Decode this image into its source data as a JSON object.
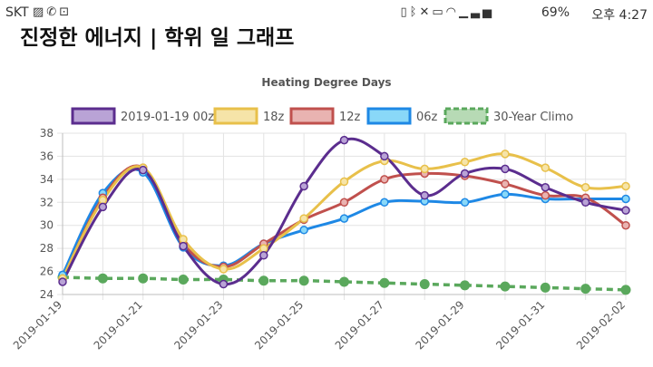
{
  "status_bar": {
    "carrier": "SKT",
    "left_icons": [
      "image-icon",
      "phone-icon",
      "bag-icon"
    ],
    "right_icons": [
      "vibrate-icon",
      "bluetooth-icon",
      "mute-icon",
      "hd-voice-icon",
      "wifi-icon",
      "signal-icon"
    ],
    "battery": "69%",
    "time": "오후 4:27"
  },
  "page_title": "진정한 에너지 | 학위 일 그래프",
  "chart_data": {
    "type": "line",
    "title": "Heating Degree Days",
    "xlabel": "",
    "ylabel": "",
    "x": [
      "2019-01-19",
      "2019-01-20",
      "2019-01-21",
      "2019-01-22",
      "2019-01-23",
      "2019-01-24",
      "2019-01-25",
      "2019-01-26",
      "2019-01-27",
      "2019-01-28",
      "2019-01-29",
      "2019-01-30",
      "2019-01-31",
      "2019-02-01",
      "2019-02-02"
    ],
    "x_tick_labels": [
      "2019-01-19",
      "2019-01-21",
      "2019-01-23",
      "2019-01-25",
      "2019-01-27",
      "2019-01-29",
      "2019-01-31",
      "2019-02-02"
    ],
    "ylim": [
      24,
      38
    ],
    "y_ticks": [
      24,
      26,
      28,
      30,
      32,
      34,
      36,
      38
    ],
    "grid": true,
    "legend_position": "top",
    "series": [
      {
        "name": "2019-01-19 00z",
        "color": "#5b2d8e",
        "fill": "#b9a3d6",
        "dashed": false,
        "values": [
          25.1,
          31.6,
          34.8,
          28.2,
          24.9,
          27.4,
          33.4,
          37.4,
          36.0,
          32.6,
          34.5,
          34.9,
          33.3,
          32.0,
          31.3
        ]
      },
      {
        "name": "18z",
        "color": "#e8c04a",
        "fill": "#f6e4a8",
        "dashed": false,
        "values": [
          25.4,
          32.2,
          35.0,
          28.8,
          26.2,
          28.0,
          30.6,
          33.8,
          35.6,
          34.9,
          35.5,
          36.2,
          35.0,
          33.3,
          33.4
        ]
      },
      {
        "name": "12z",
        "color": "#c0504d",
        "fill": "#e9b3b1",
        "dashed": false,
        "values": [
          25.3,
          32.4,
          35.0,
          28.4,
          26.4,
          28.4,
          30.5,
          32.0,
          34.0,
          34.5,
          34.3,
          33.6,
          32.6,
          32.4,
          30.0
        ]
      },
      {
        "name": "06z",
        "color": "#1e88e5",
        "fill": "#89d8f8",
        "dashed": false,
        "values": [
          25.7,
          32.8,
          34.6,
          28.1,
          26.5,
          28.4,
          29.6,
          30.6,
          32.0,
          32.1,
          32.0,
          32.7,
          32.3,
          32.3,
          32.3
        ]
      },
      {
        "name": "30-Year Climo",
        "color": "#5aa85c",
        "fill": "#b7dab5",
        "dashed": true,
        "values": [
          25.5,
          25.4,
          25.4,
          25.3,
          25.3,
          25.2,
          25.2,
          25.1,
          25.0,
          24.9,
          24.8,
          24.7,
          24.6,
          24.5,
          24.4
        ]
      }
    ]
  }
}
